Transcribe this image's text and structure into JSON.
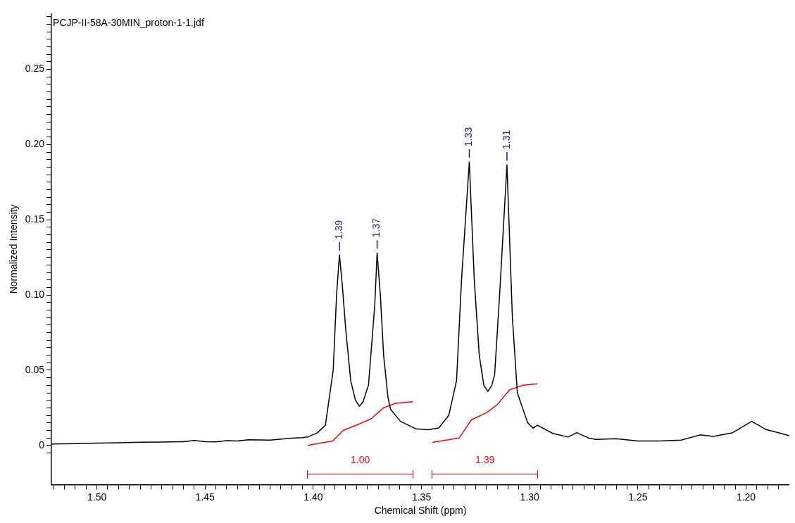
{
  "chart_data": {
    "type": "line",
    "title": "PCJP-II-58A-30MIN_proton-1-1.jdf",
    "xlabel": "Chemical Shift (ppm)",
    "ylabel": "Normalized Intensity",
    "xlim": [
      1.521,
      1.18
    ],
    "ylim": [
      -0.026,
      0.287
    ],
    "xticks": [
      {
        "value": 1.52,
        "label": null
      },
      {
        "value": 1.515,
        "label": null
      },
      {
        "value": 1.51,
        "label": null
      },
      {
        "value": 1.505,
        "label": null
      },
      {
        "value": 1.5,
        "label": "1.50"
      },
      {
        "value": 1.495,
        "label": null
      },
      {
        "value": 1.49,
        "label": null
      },
      {
        "value": 1.485,
        "label": null
      },
      {
        "value": 1.48,
        "label": null
      },
      {
        "value": 1.475,
        "label": null
      },
      {
        "value": 1.47,
        "label": null
      },
      {
        "value": 1.465,
        "label": null
      },
      {
        "value": 1.46,
        "label": null
      },
      {
        "value": 1.455,
        "label": null
      },
      1.45,
      {
        "value": 1.445,
        "label": null
      },
      {
        "value": 1.44,
        "label": null
      },
      {
        "value": 1.435,
        "label": null
      },
      {
        "value": 1.43,
        "label": null
      },
      {
        "value": 1.425,
        "label": null
      },
      {
        "value": 1.42,
        "label": null
      },
      {
        "value": 1.415,
        "label": null
      },
      {
        "value": 1.41,
        "label": null
      },
      {
        "value": 1.405,
        "label": null
      },
      {
        "value": 1.4,
        "label": "1.40"
      },
      {
        "value": 1.395,
        "label": null
      },
      {
        "value": 1.39,
        "label": null
      },
      {
        "value": 1.385,
        "label": null
      },
      {
        "value": 1.38,
        "label": null
      },
      {
        "value": 1.375,
        "label": null
      },
      {
        "value": 1.37,
        "label": null
      },
      {
        "value": 1.365,
        "label": null
      },
      {
        "value": 1.36,
        "label": null
      },
      {
        "value": 1.355,
        "label": null
      },
      1.35,
      {
        "value": 1.345,
        "label": null
      },
      {
        "value": 1.34,
        "label": null
      },
      {
        "value": 1.335,
        "label": null
      },
      {
        "value": 1.33,
        "label": null
      },
      {
        "value": 1.325,
        "label": null
      },
      {
        "value": 1.32,
        "label": null
      },
      {
        "value": 1.315,
        "label": null
      },
      {
        "value": 1.31,
        "label": null
      },
      {
        "value": 1.305,
        "label": null
      },
      {
        "value": 1.3,
        "label": "1.30"
      },
      {
        "value": 1.295,
        "label": null
      },
      {
        "value": 1.29,
        "label": null
      },
      {
        "value": 1.285,
        "label": null
      },
      {
        "value": 1.28,
        "label": null
      },
      {
        "value": 1.275,
        "label": null
      },
      {
        "value": 1.27,
        "label": null
      },
      {
        "value": 1.265,
        "label": null
      },
      {
        "value": 1.26,
        "label": null
      },
      {
        "value": 1.255,
        "label": null
      },
      1.25,
      {
        "value": 1.245,
        "label": null
      },
      {
        "value": 1.24,
        "label": null
      },
      {
        "value": 1.235,
        "label": null
      },
      {
        "value": 1.23,
        "label": null
      },
      {
        "value": 1.225,
        "label": null
      },
      {
        "value": 1.22,
        "label": null
      },
      {
        "value": 1.215,
        "label": null
      },
      {
        "value": 1.21,
        "label": null
      },
      {
        "value": 1.205,
        "label": null
      },
      {
        "value": 1.2,
        "label": "1.20"
      },
      {
        "value": 1.195,
        "label": null
      },
      {
        "value": 1.19,
        "label": null
      },
      {
        "value": 1.185,
        "label": null
      }
    ],
    "yticks": [
      {
        "value": -0.005,
        "label": null
      },
      0,
      {
        "value": 0.005,
        "label": null
      },
      {
        "value": 0.01,
        "label": null
      },
      {
        "value": 0.015,
        "label": null
      },
      {
        "value": 0.02,
        "label": null
      },
      {
        "value": 0.025,
        "label": null
      },
      {
        "value": 0.03,
        "label": null
      },
      {
        "value": 0.035,
        "label": null
      },
      {
        "value": 0.04,
        "label": null
      },
      {
        "value": 0.045,
        "label": null
      },
      0.05,
      {
        "value": 0.055,
        "label": null
      },
      {
        "value": 0.06,
        "label": null
      },
      {
        "value": 0.065,
        "label": null
      },
      {
        "value": 0.07,
        "label": null
      },
      {
        "value": 0.075,
        "label": null
      },
      {
        "value": 0.08,
        "label": null
      },
      {
        "value": 0.085,
        "label": null
      },
      {
        "value": 0.09,
        "label": null
      },
      {
        "value": 0.095,
        "label": null
      },
      {
        "value": 0.1,
        "label": "0.10"
      },
      {
        "value": 0.105,
        "label": null
      },
      {
        "value": 0.11,
        "label": null
      },
      {
        "value": 0.115,
        "label": null
      },
      {
        "value": 0.12,
        "label": null
      },
      {
        "value": 0.125,
        "label": null
      },
      {
        "value": 0.13,
        "label": null
      },
      {
        "value": 0.135,
        "label": null
      },
      {
        "value": 0.14,
        "label": null
      },
      {
        "value": 0.145,
        "label": null
      },
      0.15,
      {
        "value": 0.155,
        "label": null
      },
      {
        "value": 0.16,
        "label": null
      },
      {
        "value": 0.165,
        "label": null
      },
      {
        "value": 0.17,
        "label": null
      },
      {
        "value": 0.175,
        "label": null
      },
      {
        "value": 0.18,
        "label": null
      },
      {
        "value": 0.185,
        "label": null
      },
      {
        "value": 0.19,
        "label": null
      },
      {
        "value": 0.195,
        "label": null
      },
      {
        "value": 0.2,
        "label": "0.20"
      },
      {
        "value": 0.205,
        "label": null
      },
      {
        "value": 0.21,
        "label": null
      },
      {
        "value": 0.215,
        "label": null
      },
      {
        "value": 0.22,
        "label": null
      },
      {
        "value": 0.225,
        "label": null
      },
      {
        "value": 0.23,
        "label": null
      },
      {
        "value": 0.235,
        "label": null
      },
      {
        "value": 0.24,
        "label": null
      },
      {
        "value": 0.245,
        "label": null
      },
      0.25,
      {
        "value": 0.255,
        "label": null
      },
      {
        "value": 0.26,
        "label": null
      },
      {
        "value": 0.265,
        "label": null
      },
      {
        "value": 0.27,
        "label": null
      },
      {
        "value": 0.275,
        "label": null
      },
      {
        "value": 0.28,
        "label": null
      },
      {
        "value": 0.285,
        "label": null
      }
    ],
    "grid": false,
    "legend": false,
    "marker": "none",
    "line_style": "solid",
    "series": [
      {
        "color": "#000000",
        "x": [
          1.521,
          1.51,
          1.5,
          1.49,
          1.48,
          1.47,
          1.46,
          1.455,
          1.45,
          1.445,
          1.44,
          1.435,
          1.43,
          1.42,
          1.41,
          1.405,
          1.4026,
          1.398,
          1.3944,
          1.3908,
          1.3892,
          1.3879,
          1.3865,
          1.385,
          1.3827,
          1.3805,
          1.3787,
          1.377,
          1.3745,
          1.3716,
          1.3705,
          1.369,
          1.3675,
          1.3655,
          1.3643,
          1.3597,
          1.3525,
          1.347,
          1.342,
          1.3374,
          1.3338,
          1.3315,
          1.3279,
          1.3256,
          1.3233,
          1.3212,
          1.3193,
          1.3175,
          1.3162,
          1.3139,
          1.3105,
          1.308,
          1.3057,
          1.301,
          1.2985,
          1.2964,
          1.2893,
          1.2823,
          1.2782,
          1.2729,
          1.2695,
          1.26,
          1.25,
          1.24,
          1.23,
          1.2213,
          1.215,
          1.2062,
          1.1974,
          1.191,
          1.185,
          1.18
        ],
        "values": [
          0.001,
          0.0012,
          0.0015,
          0.0018,
          0.0022,
          0.0023,
          0.0025,
          0.0033,
          0.0025,
          0.0024,
          0.0032,
          0.003,
          0.0038,
          0.0036,
          0.0048,
          0.0052,
          0.0056,
          0.0085,
          0.0135,
          0.05,
          0.101,
          0.1267,
          0.105,
          0.077,
          0.043,
          0.03,
          0.026,
          0.029,
          0.04,
          0.093,
          0.128,
          0.1,
          0.06,
          0.032,
          0.024,
          0.016,
          0.011,
          0.0105,
          0.0116,
          0.02,
          0.043,
          0.11,
          0.1885,
          0.11,
          0.06,
          0.04,
          0.0359,
          0.04,
          0.047,
          0.1,
          0.1866,
          0.085,
          0.035,
          0.0153,
          0.0115,
          0.0134,
          0.008,
          0.0056,
          0.0085,
          0.005,
          0.004,
          0.0045,
          0.003,
          0.003,
          0.0035,
          0.007,
          0.006,
          0.0085,
          0.016,
          0.0107,
          0.0085,
          0.0065
        ]
      },
      {
        "color": "#ff0000",
        "x": [
          1.4026,
          1.391,
          1.3862,
          1.38,
          1.3734,
          1.3675,
          1.362,
          1.354
        ],
        "values": [
          0,
          0.003,
          0.01,
          0.0135,
          0.0176,
          0.025,
          0.028,
          0.029
        ]
      },
      {
        "color": "#ff0000",
        "x": [
          1.3449,
          1.3326,
          1.3269,
          1.3197,
          1.3151,
          1.3092,
          1.303,
          1.2965
        ],
        "values": [
          0.002,
          0.005,
          0.017,
          0.022,
          0.027,
          0.037,
          0.04,
          0.041
        ]
      }
    ],
    "annotations": [
      {
        "text": "1.39",
        "x": 1.3879,
        "y": 0.1267
      },
      {
        "text": "1.37",
        "x": 1.3705,
        "y": 0.128
      },
      {
        "text": "1.33",
        "x": 1.3279,
        "y": 0.1885
      },
      {
        "text": "1.31",
        "x": 1.3105,
        "y": 0.1866
      },
      "1.00",
      "1.39"
    ]
  }
}
